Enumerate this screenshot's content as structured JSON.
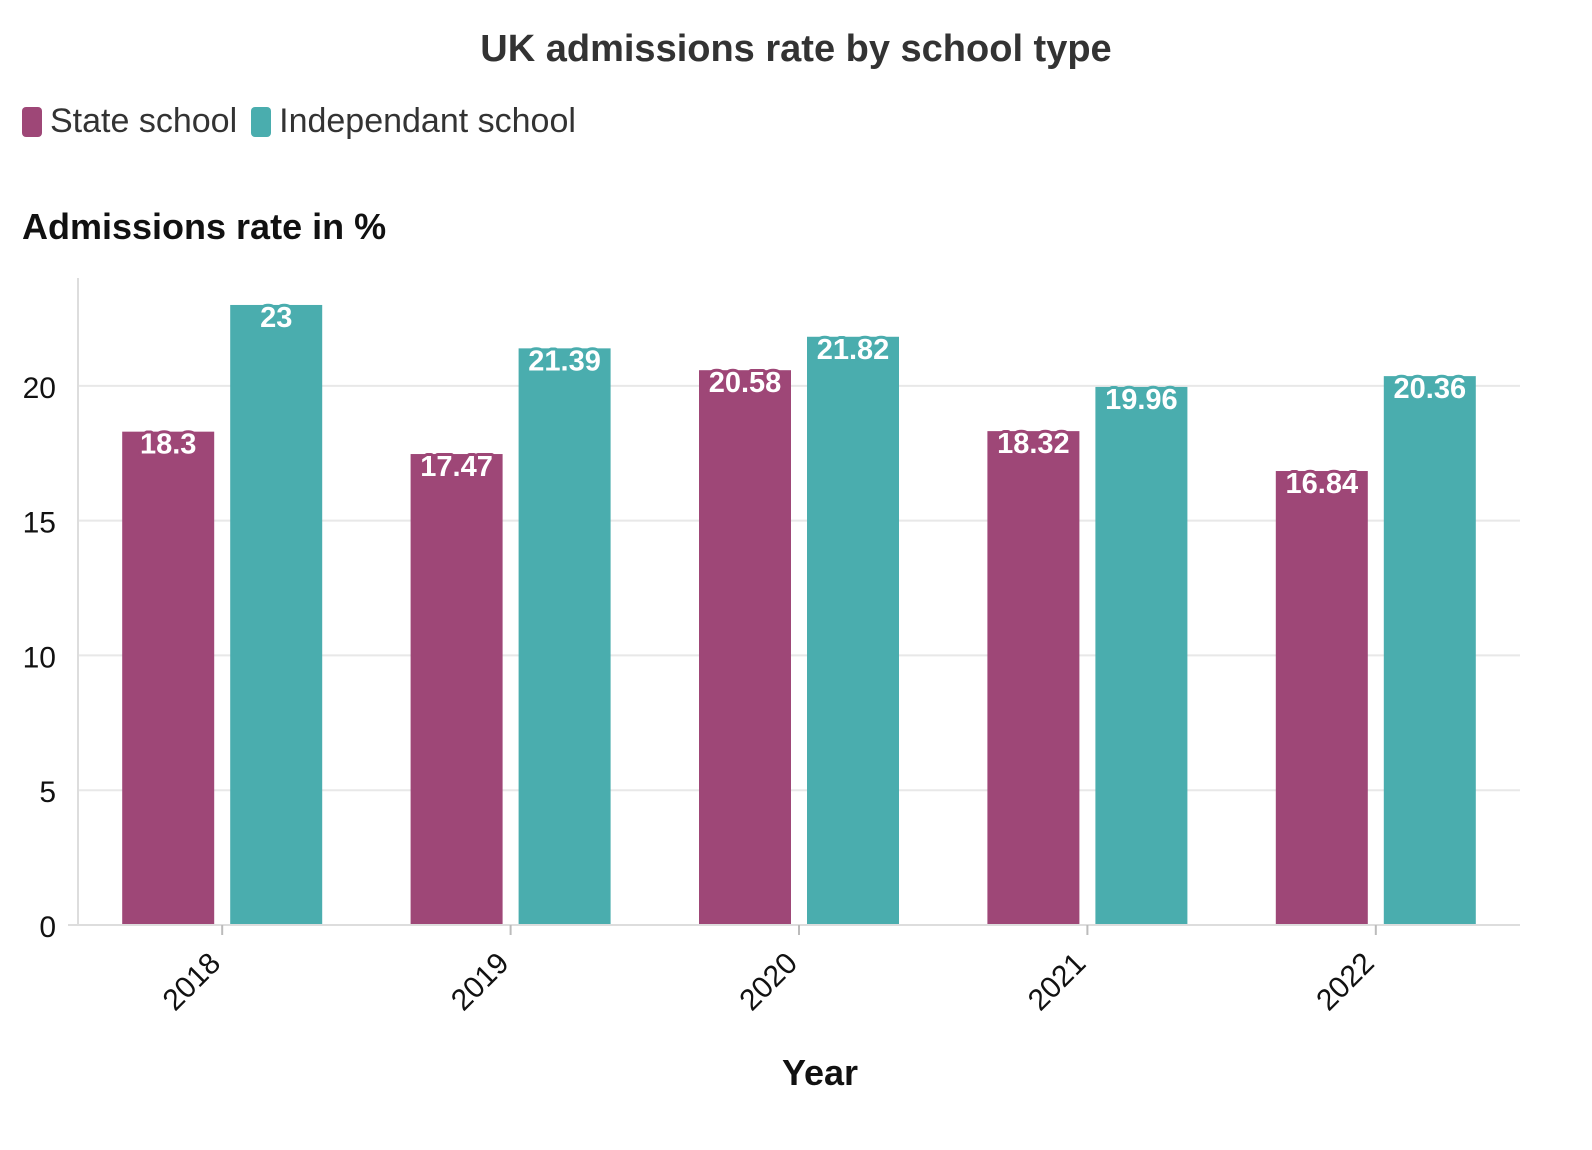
{
  "chart_data": {
    "type": "bar",
    "title": "UK admissions rate by school type",
    "ylabel": "Admissions rate in %",
    "xlabel": "Year",
    "categories": [
      "2018",
      "2019",
      "2020",
      "2021",
      "2022"
    ],
    "series": [
      {
        "name": "State school",
        "color": "#9E4777",
        "values": [
          18.3,
          17.47,
          20.58,
          18.32,
          16.84
        ]
      },
      {
        "name": "Independant school",
        "color": "#4AADAE",
        "values": [
          23,
          21.39,
          21.82,
          19.96,
          20.36
        ]
      }
    ],
    "ylim": [
      0,
      24
    ],
    "yticks": [
      0,
      5,
      10,
      15,
      20
    ],
    "grid": true,
    "legend": "top-left"
  }
}
